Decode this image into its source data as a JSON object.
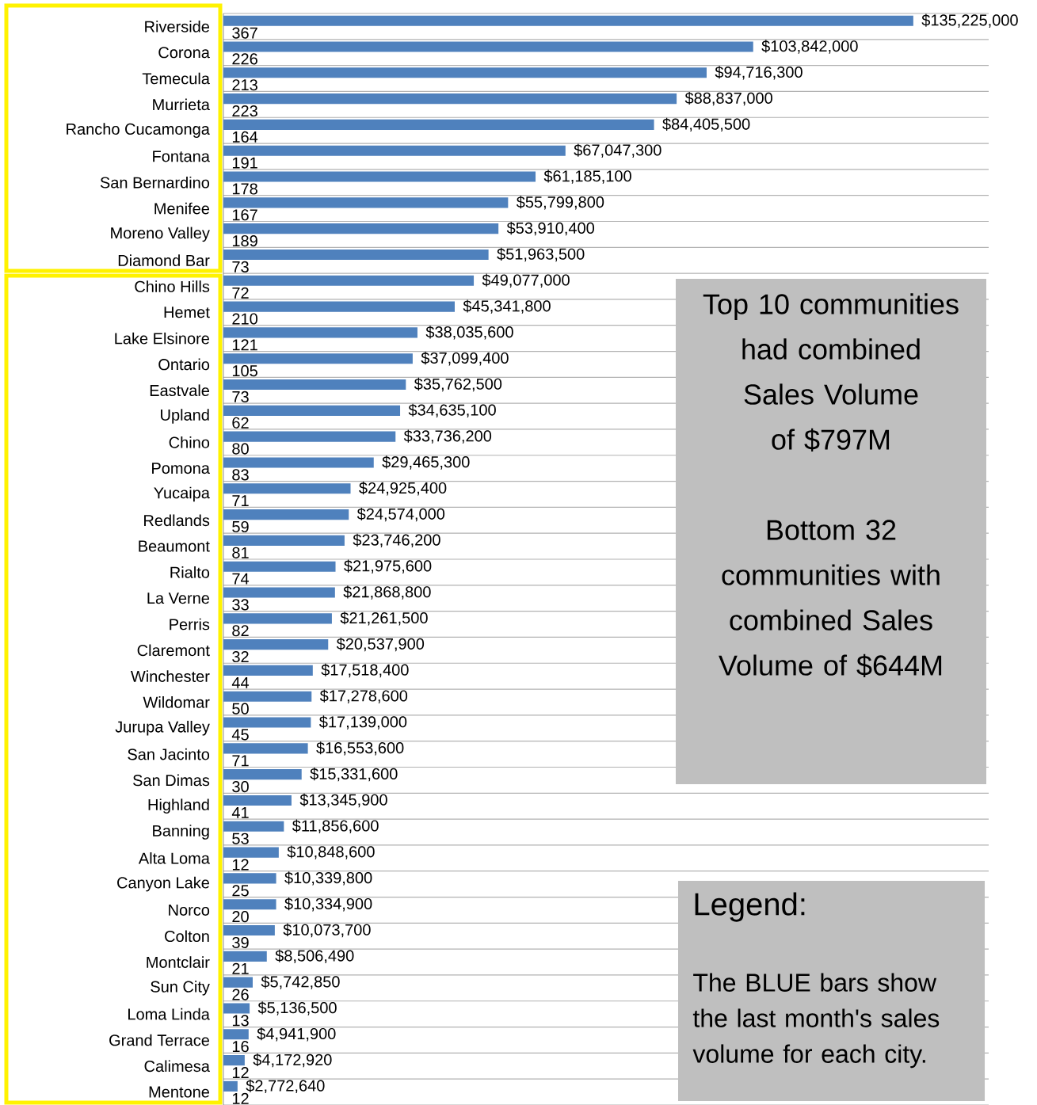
{
  "chart_data": {
    "type": "bar",
    "orientation": "horizontal",
    "tick_labels": "y",
    "grid": "y",
    "xlim": [
      0,
      150000000
    ],
    "categories": [
      "Riverside",
      "Corona",
      "Temecula",
      "Murrieta",
      "Rancho Cucamonga",
      "Fontana",
      "San Bernardino",
      "Menifee",
      "Moreno Valley",
      "Diamond Bar",
      "Chino Hills",
      "Hemet",
      "Lake Elsinore",
      "Ontario",
      "Eastvale",
      "Upland",
      "Chino",
      "Pomona",
      "Yucaipa",
      "Redlands",
      "Beaumont",
      "Rialto",
      "La Verne",
      "Perris",
      "Claremont",
      "Winchester",
      "Wildomar",
      "Jurupa Valley",
      "San Jacinto",
      "San Dimas",
      "Highland",
      "Banning",
      "Alta Loma",
      "Canyon Lake",
      "Norco",
      "Colton",
      "Montclair",
      "Sun City",
      "Loma Linda",
      "Grand Terrace",
      "Calimesa",
      "Mentone"
    ],
    "series": [
      {
        "color": "#4f81bd",
        "values": [
          135225000,
          103842000,
          94716300,
          88837000,
          84405500,
          67047300,
          61185100,
          55799800,
          53910400,
          51963500,
          49077000,
          45341800,
          38035600,
          37099400,
          35762500,
          34635100,
          33736200,
          29465300,
          24925400,
          24574000,
          23746200,
          21975600,
          21868800,
          21261500,
          20537900,
          17518400,
          17278600,
          17139000,
          16553600,
          15331600,
          13345900,
          11856600,
          10848600,
          10339800,
          10334900,
          10073700,
          8506490,
          5742850,
          5136500,
          4941900,
          4172920,
          2772640
        ],
        "value_labels": [
          "$135,225,000",
          "$103,842,000",
          "$94,716,300",
          "$88,837,000",
          "$84,405,500",
          "$67,047,300",
          "$61,185,100",
          "$55,799,800",
          "$53,910,400",
          "$51,963,500",
          "$49,077,000",
          "$45,341,800",
          "$38,035,600",
          "$37,099,400",
          "$35,762,500",
          "$34,635,100",
          "$33,736,200",
          "$29,465,300",
          "$24,925,400",
          "$24,574,000",
          "$23,746,200",
          "$21,975,600",
          "$21,868,800",
          "$21,261,500",
          "$20,537,900",
          "$17,518,400",
          "$17,278,600",
          "$17,139,000",
          "$16,553,600",
          "$15,331,600",
          "$13,345,900",
          "$11,856,600",
          "$10,848,600",
          "$10,339,800",
          "$10,334,900",
          "$10,073,700",
          "$8,506,490",
          "$5,742,850",
          "$5,136,500",
          "$4,941,900",
          "$4,172,920",
          "$2,772,640"
        ]
      },
      {
        "color": "#c0504d",
        "values": [
          367,
          226,
          213,
          223,
          164,
          191,
          178,
          167,
          189,
          73,
          72,
          210,
          121,
          105,
          73,
          62,
          80,
          83,
          71,
          59,
          81,
          74,
          33,
          82,
          32,
          44,
          50,
          45,
          71,
          30,
          41,
          53,
          12,
          25,
          20,
          39,
          21,
          26,
          13,
          16,
          12,
          12
        ],
        "value_labels": [
          "367",
          "226",
          "213",
          "223",
          "164",
          "191",
          "178",
          "167",
          "189",
          "73",
          "72",
          "210",
          "121",
          "105",
          "73",
          "62",
          "80",
          "83",
          "71",
          "59",
          "81",
          "74",
          "33",
          "82",
          "32",
          "44",
          "50",
          "45",
          "71",
          "30",
          "41",
          "53",
          "12",
          "25",
          "20",
          "39",
          "21",
          "26",
          "13",
          "16",
          "12",
          "12"
        ]
      }
    ],
    "annotations": [
      "Top 10 communities had combined Sales Volume of $797M",
      "Bottom 32 communities with combined Sales Volume of $644M",
      "Legend:",
      "The BLUE bars show the last month's sales volume for each city."
    ]
  }
}
